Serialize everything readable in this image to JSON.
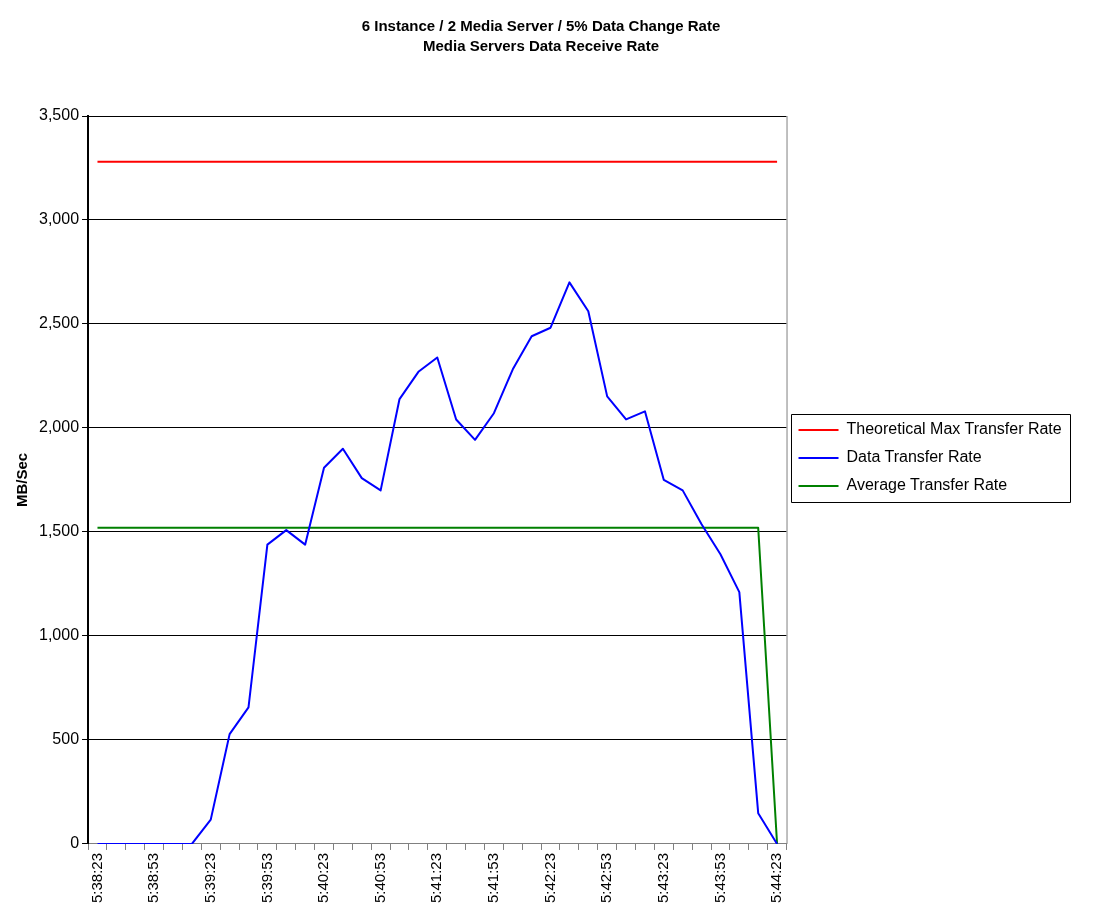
{
  "chart_data": {
    "type": "line",
    "title": "6 Instance / 2 Media Server / 5% Data Change Rate",
    "subtitle": "Media Servers Data Receive Rate",
    "ylabel": "MB/Sec",
    "categories": [
      "5:38:23",
      null,
      null,
      "5:38:53",
      null,
      null,
      "5:39:23",
      null,
      null,
      "5:39:53",
      null,
      null,
      "5:40:23",
      null,
      null,
      "5:40:53",
      null,
      null,
      "5:41:23",
      null,
      null,
      "5:41:53",
      null,
      null,
      "5:42:23",
      null,
      null,
      "5:42:53",
      null,
      null,
      "5:43:23",
      null,
      null,
      "5:43:53",
      null,
      null,
      "5:44:23"
    ],
    "series": [
      {
        "name": "Theoretical Max Transfer Rate",
        "color": "#ff0000",
        "values": [
          3280,
          3280,
          3280,
          3280,
          3280,
          3280,
          3280,
          3280,
          3280,
          3280,
          3280,
          3280,
          3280,
          3280,
          3280,
          3280,
          3280,
          3280,
          3280,
          3280,
          3280,
          3280,
          3280,
          3280,
          3280,
          3280,
          3280,
          3280,
          3280,
          3280,
          3280,
          3280,
          3280,
          3280,
          3280,
          3280,
          3280
        ]
      },
      {
        "name": "Data Transfer Rate",
        "color": "#0000ff",
        "values": [
          0,
          0,
          0,
          0,
          0,
          0,
          117,
          528,
          657,
          1439,
          1509,
          1439,
          1809,
          1900,
          1759,
          1700,
          2139,
          2270,
          2339,
          2041,
          1943,
          2071,
          2282,
          2441,
          2482,
          2700,
          2561,
          2152,
          2041,
          2080,
          1750,
          1700,
          1537,
          1393,
          1211,
          148,
          0
        ]
      },
      {
        "name": "Average Transfer Rate",
        "color": "#008000",
        "values": [
          1520,
          1520,
          1520,
          1520,
          1520,
          1520,
          1520,
          1520,
          1520,
          1520,
          1520,
          1520,
          1520,
          1520,
          1520,
          1520,
          1520,
          1520,
          1520,
          1520,
          1520,
          1520,
          1520,
          1520,
          1520,
          1520,
          1520,
          1520,
          1520,
          1520,
          1520,
          1520,
          1520,
          1520,
          1520,
          1520,
          0
        ]
      }
    ],
    "ylim": [
      0,
      3500
    ],
    "yticks": [
      {
        "value": 0,
        "label": "0"
      },
      {
        "value": 500,
        "label": "500"
      },
      {
        "value": 1000,
        "label": "1,000"
      },
      {
        "value": 1500,
        "label": "1,500"
      },
      {
        "value": 2000,
        "label": "2,000"
      },
      {
        "value": 2500,
        "label": "2,500"
      },
      {
        "value": 3000,
        "label": "3,000"
      },
      {
        "value": 3500,
        "label": "3,500"
      }
    ],
    "grid": "y",
    "legend": "right",
    "marker": "none",
    "line_style": "solid"
  }
}
